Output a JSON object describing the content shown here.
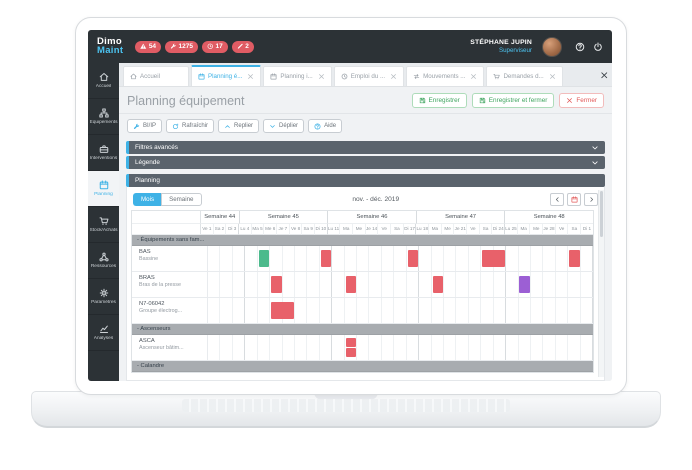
{
  "header": {
    "logo_line1": "Dimo",
    "logo_line2": "Maint",
    "badges": [
      {
        "icon": "warning",
        "value": "54"
      },
      {
        "icon": "wrench",
        "value": "1275"
      },
      {
        "icon": "clock",
        "value": "17"
      },
      {
        "icon": "pen",
        "value": "2"
      }
    ],
    "user": {
      "name": "STÉPHANE JUPIN",
      "role": "Superviseur"
    }
  },
  "sidebar": {
    "items": [
      {
        "label": "Accueil",
        "icon": "home",
        "active": false
      },
      {
        "label": "Équipements",
        "icon": "sitemap",
        "active": false
      },
      {
        "label": "Interventions",
        "icon": "toolbox",
        "active": false
      },
      {
        "label": "Planning",
        "icon": "calendar",
        "active": true
      },
      {
        "label": "Stock/Achats",
        "icon": "cart",
        "active": false
      },
      {
        "label": "Ressources",
        "icon": "nodes",
        "active": false
      },
      {
        "label": "Paramètres",
        "icon": "gears",
        "active": false
      },
      {
        "label": "Analyses",
        "icon": "chart",
        "active": false
      }
    ]
  },
  "tabs": {
    "items": [
      {
        "label": "Accueil",
        "icon": "home",
        "active": false,
        "closable": false
      },
      {
        "label": "Planning é...",
        "icon": "calendar",
        "active": true,
        "closable": true
      },
      {
        "label": "Planning i...",
        "icon": "calendar",
        "active": false,
        "closable": true
      },
      {
        "label": "Emploi du ...",
        "icon": "clock",
        "active": false,
        "closable": true
      },
      {
        "label": "Mouvements ...",
        "icon": "arrows",
        "active": false,
        "closable": true
      },
      {
        "label": "Demandes d...",
        "icon": "cart",
        "active": false,
        "closable": true
      }
    ]
  },
  "page": {
    "title": "Planning équipement",
    "actions": [
      {
        "label": "Enregistrer",
        "icon": "save",
        "style": "green"
      },
      {
        "label": "Enregistrer et fermer",
        "icon": "save",
        "style": "green"
      },
      {
        "label": "Fermer",
        "icon": "close",
        "style": "red"
      }
    ]
  },
  "toolbar": {
    "buttons": [
      {
        "label": "BI/IP",
        "icon": "wrench"
      },
      {
        "label": "Rafraîchir",
        "icon": "refresh"
      },
      {
        "label": "Replier",
        "icon": "chevron-up"
      },
      {
        "label": "Déplier",
        "icon": "chevron-down"
      },
      {
        "label": "Aide",
        "icon": "help"
      }
    ]
  },
  "collapsible_panels": [
    {
      "title": "Filtres avancés"
    },
    {
      "title": "Légende"
    }
  ],
  "planning": {
    "title": "Planning",
    "view_options": [
      "Mois",
      "Semaine"
    ],
    "active_view": "Mois",
    "period_label": "nov. - déc. 2019",
    "colors": {
      "red": "#e8616a",
      "green": "#4cba8c",
      "purple": "#9c5fd4"
    },
    "weeks": [
      {
        "label": "Semaine 44",
        "days": [
          "Ve 1",
          "Sa 2",
          "Di 3"
        ]
      },
      {
        "label": "Semaine 45",
        "days": [
          "Lu 4",
          "Ma 5",
          "Me 6",
          "Je 7",
          "Ve 8",
          "Sa 9",
          "Di 10"
        ]
      },
      {
        "label": "Semaine 46",
        "days": [
          "Lu 11",
          "Ma 12",
          "Me 13",
          "Je 14",
          "Ve 15",
          "Sa 16",
          "Di 17"
        ]
      },
      {
        "label": "Semaine 47",
        "days": [
          "Lu 18",
          "Ma 19",
          "Me 20",
          "Je 21",
          "Ve 22",
          "Sa 23",
          "Di 24"
        ]
      },
      {
        "label": "Semaine 48",
        "days": [
          "Lu 25",
          "Ma 26",
          "Me 27",
          "Je 28",
          "Ve 29",
          "Sa 30",
          "Di 1"
        ]
      }
    ],
    "rows": [
      {
        "type": "group",
        "label": "- Équipements sans fam..."
      },
      {
        "type": "equipment",
        "code": "BAS",
        "name": "Bassine",
        "bars": [
          {
            "day_index": 4,
            "start_day": "Ma 5",
            "days": 1,
            "color": "green"
          },
          {
            "day_index": 9,
            "start_day": "Di 10",
            "days": 1,
            "color": "red"
          },
          {
            "day_index": 16,
            "start_day": "Di 17",
            "days": 1,
            "color": "red"
          },
          {
            "day_index": 22,
            "start_day": "Sa 23",
            "days": 2,
            "color": "red"
          },
          {
            "day_index": 29,
            "start_day": "Sa 30",
            "days": 1,
            "color": "red"
          }
        ]
      },
      {
        "type": "equipment",
        "code": "BRAS",
        "name": "Bras de la presse",
        "bars": [
          {
            "day_index": 5,
            "start_day": "Me 6",
            "days": 1,
            "color": "red"
          },
          {
            "day_index": 11,
            "start_day": "Ma 12",
            "days": 1,
            "color": "red"
          },
          {
            "day_index": 18,
            "start_day": "Ma 19",
            "days": 1,
            "color": "red"
          },
          {
            "day_index": 25,
            "start_day": "Ma 26",
            "days": 1,
            "color": "purple"
          }
        ]
      },
      {
        "type": "equipment",
        "code": "N7-06042",
        "name": "Groupe électrog...",
        "bars": [
          {
            "day_index": 5,
            "start_day": "Me 6",
            "days": 2,
            "color": "red"
          }
        ]
      },
      {
        "type": "group",
        "label": "- Ascenseurs"
      },
      {
        "type": "equipment",
        "code": "ASCA",
        "name": "Ascenseur bâtim...",
        "bars": [
          {
            "day_index": 11,
            "start_day": "Ma 12",
            "days": 1,
            "color": "red",
            "half": "top"
          },
          {
            "day_index": 11,
            "start_day": "Ma 12",
            "days": 1,
            "color": "red",
            "half": "bottom"
          }
        ]
      },
      {
        "type": "group",
        "label": "- Calandre"
      }
    ]
  }
}
